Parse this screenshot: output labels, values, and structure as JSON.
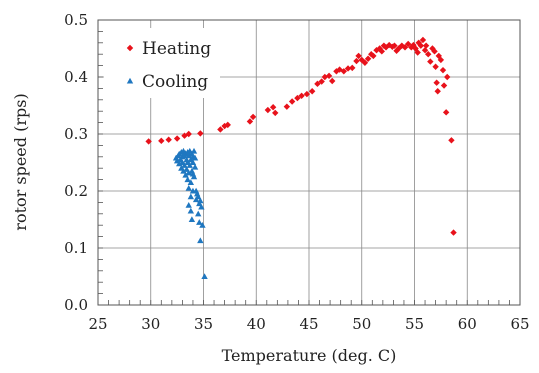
{
  "chart_data": {
    "type": "scatter",
    "xlabel": "Temperature (deg. C)",
    "ylabel": "rotor speed (rps)",
    "xlim": [
      25,
      65
    ],
    "ylim": [
      0,
      0.5
    ],
    "xticks": [
      "25",
      "30",
      "35",
      "40",
      "45",
      "50",
      "55",
      "60",
      "65"
    ],
    "yticks": [
      "0.0",
      "0.1",
      "0.2",
      "0.3",
      "0.4",
      "0.5"
    ],
    "grid": true,
    "legend_position": "top-left",
    "series": [
      {
        "name": "Heating",
        "marker": "diamond",
        "color": "#e8121b",
        "points": [
          [
            29.8,
            0.287
          ],
          [
            31.0,
            0.288
          ],
          [
            31.7,
            0.29
          ],
          [
            32.5,
            0.292
          ],
          [
            33.2,
            0.297
          ],
          [
            33.6,
            0.3
          ],
          [
            34.7,
            0.301
          ],
          [
            36.6,
            0.308
          ],
          [
            37.0,
            0.314
          ],
          [
            37.3,
            0.316
          ],
          [
            39.4,
            0.322
          ],
          [
            39.7,
            0.33
          ],
          [
            41.1,
            0.342
          ],
          [
            41.6,
            0.347
          ],
          [
            41.8,
            0.337
          ],
          [
            42.9,
            0.348
          ],
          [
            43.4,
            0.357
          ],
          [
            43.9,
            0.363
          ],
          [
            44.3,
            0.367
          ],
          [
            44.8,
            0.37
          ],
          [
            45.3,
            0.375
          ],
          [
            45.8,
            0.388
          ],
          [
            46.2,
            0.392
          ],
          [
            46.5,
            0.4
          ],
          [
            46.9,
            0.402
          ],
          [
            47.2,
            0.393
          ],
          [
            47.6,
            0.41
          ],
          [
            47.9,
            0.413
          ],
          [
            48.3,
            0.41
          ],
          [
            48.7,
            0.415
          ],
          [
            49.1,
            0.416
          ],
          [
            49.5,
            0.428
          ],
          [
            49.7,
            0.437
          ],
          [
            50.0,
            0.43
          ],
          [
            50.3,
            0.425
          ],
          [
            50.6,
            0.432
          ],
          [
            50.9,
            0.44
          ],
          [
            51.1,
            0.437
          ],
          [
            51.4,
            0.447
          ],
          [
            51.7,
            0.45
          ],
          [
            51.9,
            0.445
          ],
          [
            52.1,
            0.455
          ],
          [
            52.3,
            0.452
          ],
          [
            52.6,
            0.456
          ],
          [
            52.9,
            0.453
          ],
          [
            53.1,
            0.455
          ],
          [
            53.3,
            0.446
          ],
          [
            53.5,
            0.45
          ],
          [
            53.8,
            0.455
          ],
          [
            54.1,
            0.452
          ],
          [
            54.4,
            0.458
          ],
          [
            54.7,
            0.452
          ],
          [
            54.9,
            0.456
          ],
          [
            55.1,
            0.45
          ],
          [
            55.3,
            0.443
          ],
          [
            55.4,
            0.46
          ],
          [
            55.6,
            0.455
          ],
          [
            55.8,
            0.465
          ],
          [
            56.0,
            0.447
          ],
          [
            56.1,
            0.455
          ],
          [
            56.3,
            0.44
          ],
          [
            56.5,
            0.427
          ],
          [
            56.7,
            0.45
          ],
          [
            56.9,
            0.445
          ],
          [
            57.0,
            0.418
          ],
          [
            57.1,
            0.39
          ],
          [
            57.2,
            0.375
          ],
          [
            57.3,
            0.437
          ],
          [
            57.5,
            0.43
          ],
          [
            57.7,
            0.412
          ],
          [
            57.8,
            0.385
          ],
          [
            58.1,
            0.4
          ],
          [
            58.0,
            0.338
          ],
          [
            58.5,
            0.289
          ],
          [
            58.7,
            0.127
          ]
        ]
      },
      {
        "name": "Cooling",
        "marker": "triangle",
        "color": "#1f77c0",
        "points": [
          [
            32.4,
            0.258
          ],
          [
            32.5,
            0.253
          ],
          [
            32.6,
            0.262
          ],
          [
            32.7,
            0.248
          ],
          [
            32.7,
            0.265
          ],
          [
            32.8,
            0.255
          ],
          [
            32.9,
            0.24
          ],
          [
            32.9,
            0.268
          ],
          [
            33.0,
            0.26
          ],
          [
            33.0,
            0.25
          ],
          [
            33.1,
            0.235
          ],
          [
            33.1,
            0.27
          ],
          [
            33.2,
            0.262
          ],
          [
            33.2,
            0.245
          ],
          [
            33.3,
            0.228
          ],
          [
            33.3,
            0.266
          ],
          [
            33.4,
            0.255
          ],
          [
            33.4,
            0.238
          ],
          [
            33.5,
            0.22
          ],
          [
            33.5,
            0.268
          ],
          [
            33.5,
            0.25
          ],
          [
            33.6,
            0.262
          ],
          [
            33.6,
            0.205
          ],
          [
            33.6,
            0.232
          ],
          [
            33.7,
            0.245
          ],
          [
            33.7,
            0.27
          ],
          [
            33.8,
            0.255
          ],
          [
            33.8,
            0.215
          ],
          [
            33.8,
            0.19
          ],
          [
            33.9,
            0.265
          ],
          [
            33.9,
            0.235
          ],
          [
            34.0,
            0.25
          ],
          [
            34.0,
            0.26
          ],
          [
            34.0,
            0.2
          ],
          [
            34.1,
            0.27
          ],
          [
            34.1,
            0.225
          ],
          [
            34.2,
            0.242
          ],
          [
            34.2,
            0.258
          ],
          [
            33.6,
            0.175
          ],
          [
            33.8,
            0.165
          ],
          [
            34.3,
            0.2
          ],
          [
            34.3,
            0.185
          ],
          [
            34.4,
            0.195
          ],
          [
            34.5,
            0.19
          ],
          [
            34.6,
            0.178
          ],
          [
            34.5,
            0.16
          ],
          [
            33.9,
            0.15
          ],
          [
            34.7,
            0.183
          ],
          [
            34.8,
            0.172
          ],
          [
            34.6,
            0.145
          ],
          [
            34.9,
            0.14
          ],
          [
            34.7,
            0.113
          ],
          [
            35.1,
            0.05
          ],
          [
            34.0,
            0.23
          ]
        ]
      }
    ]
  }
}
